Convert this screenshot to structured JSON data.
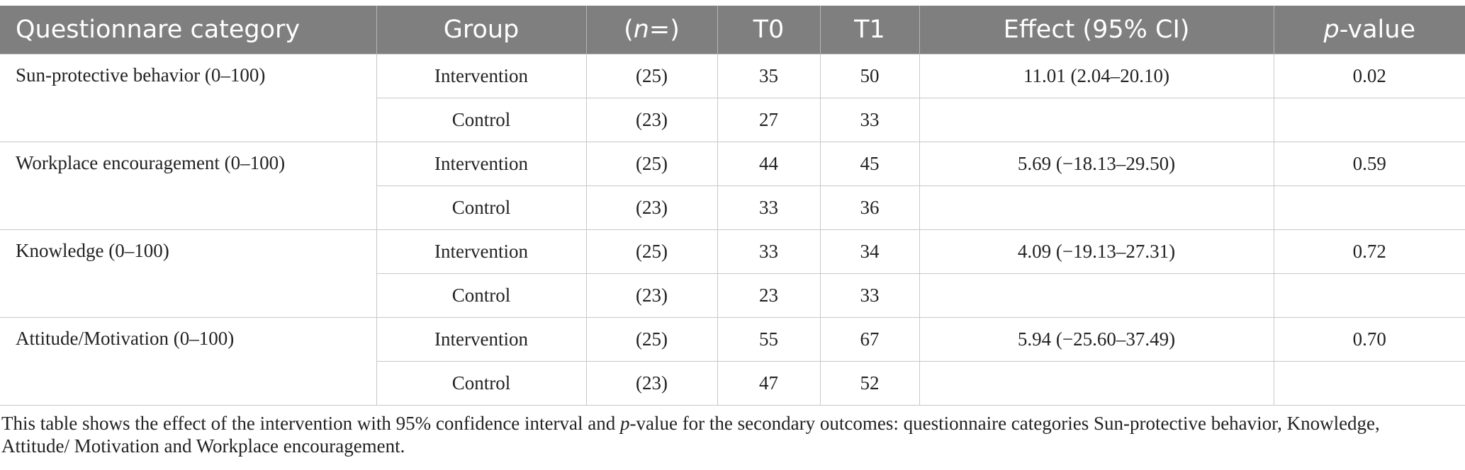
{
  "header": {
    "category": "Questionnare category",
    "group": "Group",
    "n_open": "(",
    "n_var": "n",
    "n_close": "=)",
    "t0": "T0",
    "t1": "T1",
    "effect": "Effect (95% CI)",
    "p_var": "p",
    "p_rest": "-value"
  },
  "rows": [
    {
      "category": "Sun-protective behavior (0–100)",
      "intervention": {
        "group": "Intervention",
        "n": "(25)",
        "t0": "35",
        "t1": "50"
      },
      "control": {
        "group": "Control",
        "n": "(23)",
        "t0": "27",
        "t1": "33"
      },
      "effect": "11.01 (2.04–20.10)",
      "p": "0.02"
    },
    {
      "category": "Workplace encouragement (0–100)",
      "intervention": {
        "group": "Intervention",
        "n": "(25)",
        "t0": "44",
        "t1": "45"
      },
      "control": {
        "group": "Control",
        "n": "(23)",
        "t0": "33",
        "t1": "36"
      },
      "effect": "5.69 (−18.13–29.50)",
      "p": "0.59"
    },
    {
      "category": "Knowledge (0–100)",
      "intervention": {
        "group": "Intervention",
        "n": "(25)",
        "t0": "33",
        "t1": "34"
      },
      "control": {
        "group": "Control",
        "n": "(23)",
        "t0": "23",
        "t1": "33"
      },
      "effect": "4.09 (−19.13–27.31)",
      "p": "0.72"
    },
    {
      "category": "Attitude/Motivation (0–100)",
      "intervention": {
        "group": "Intervention",
        "n": "(25)",
        "t0": "55",
        "t1": "67"
      },
      "control": {
        "group": "Control",
        "n": "(23)",
        "t0": "47",
        "t1": "52"
      },
      "effect": "5.94 (−25.60–37.49)",
      "p": "0.70"
    }
  ],
  "footnote": {
    "part1": "This table shows the effect of the intervention with 95% confidence interval and ",
    "p_var": "p",
    "part2": "-value for the secondary outcomes: questionnaire categories Sun-protective behavior, Knowledge, Attitude/ Motivation and Workplace encouragement."
  }
}
